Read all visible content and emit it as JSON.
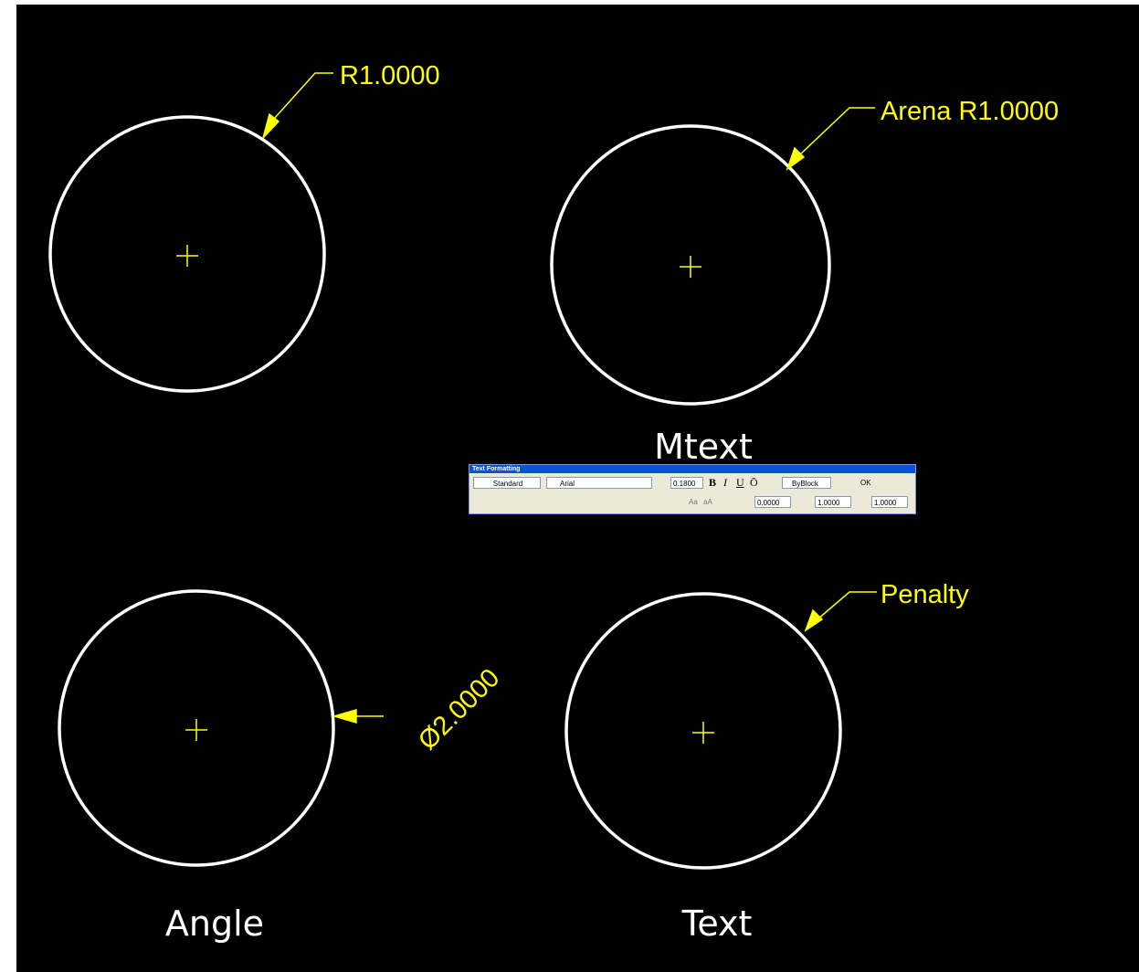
{
  "drawing": {
    "dimensions": [
      "R1.0000",
      "Arena R1.0000",
      "Ø2.0000",
      "Penalty"
    ],
    "labels": [
      "Mtext",
      "Angle",
      "Text"
    ]
  },
  "toolbar": {
    "title": "Text Formatting",
    "style": "Standard",
    "font": "Arial",
    "height": "0.1800",
    "bold": "B",
    "italic": "I",
    "underline": "U",
    "overline": "Ō",
    "color": "ByBlock",
    "ok": "OK",
    "upper": "Aa",
    "lower": "aA",
    "oblique": "0.0000",
    "tracking": "1.0000",
    "width": "1.0000"
  }
}
